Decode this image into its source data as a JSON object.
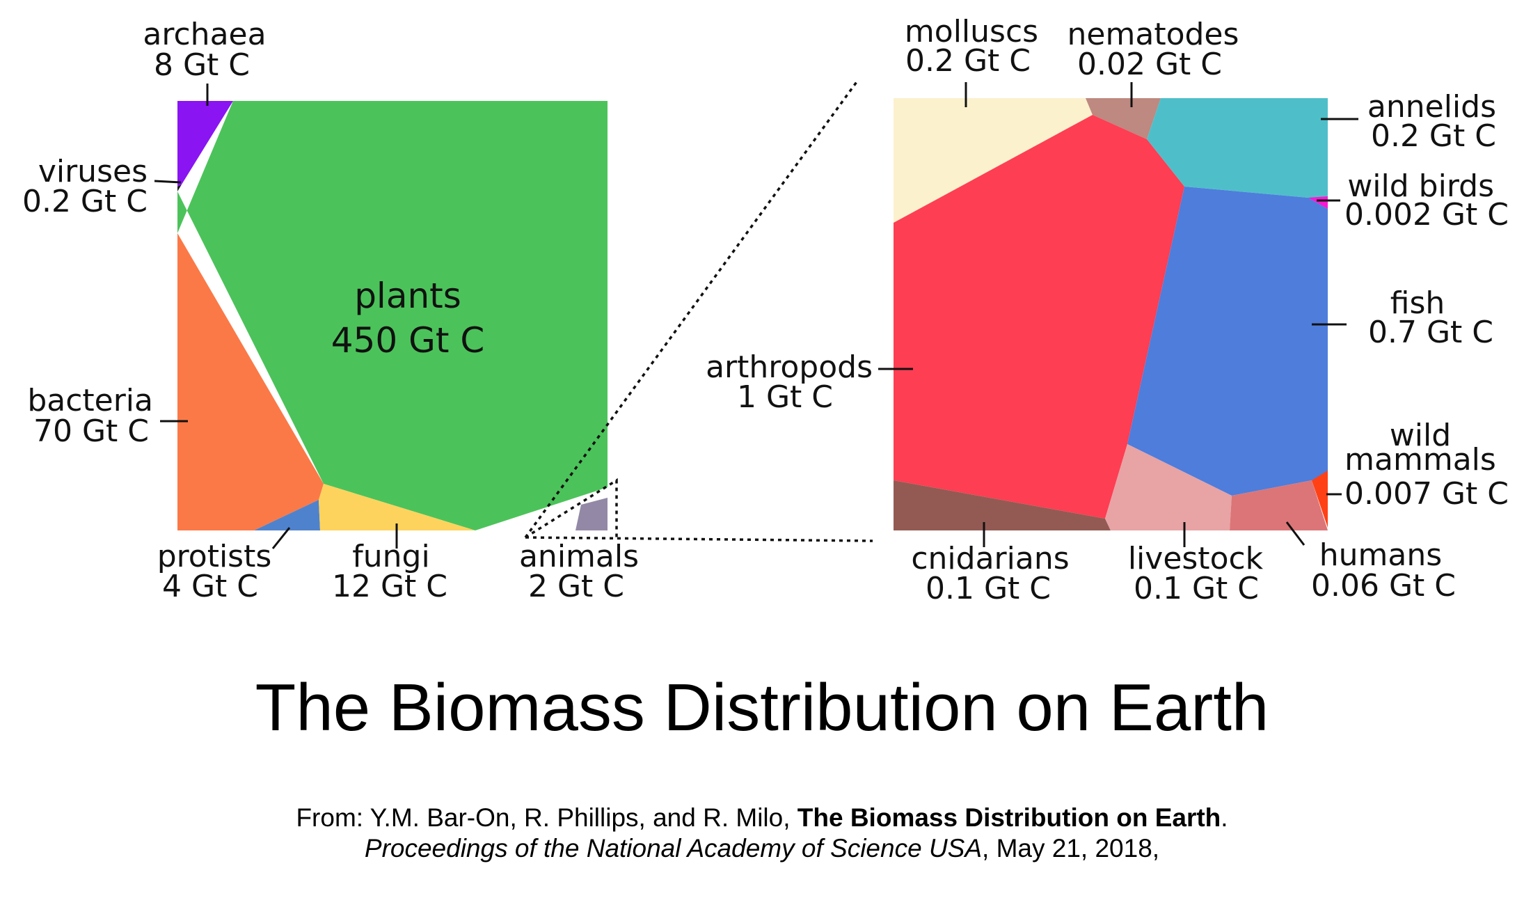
{
  "chart_data": [
    {
      "type": "voronoi-treemap",
      "unit": "Gt C",
      "cells": [
        {
          "name": "plants",
          "value_label": "450 Gt C",
          "value": 450,
          "color": "#4bc35a"
        },
        {
          "name": "bacteria",
          "value_label": "70 Gt C",
          "value": 70,
          "color": "#fb7947"
        },
        {
          "name": "fungi",
          "value_label": "12 Gt C",
          "value": 12,
          "color": "#fed35d"
        },
        {
          "name": "archaea",
          "value_label": "8 Gt C",
          "value": 8,
          "color": "#8a14f2"
        },
        {
          "name": "protists",
          "value_label": "4 Gt C",
          "value": 4,
          "color": "#4f82cc"
        },
        {
          "name": "animals",
          "value_label": "2 Gt C",
          "value": 2,
          "color": "#9389a6"
        },
        {
          "name": "viruses",
          "value_label": "0.2 Gt C",
          "value": 0.2,
          "color": "#1a1a1a"
        }
      ]
    },
    {
      "type": "voronoi-treemap",
      "unit": "Gt C",
      "cells": [
        {
          "name": "arthropods",
          "value_label": "1 Gt C",
          "value": 1,
          "color": "#fe3e53"
        },
        {
          "name": "fish",
          "value_label": "0.7 Gt C",
          "value": 0.7,
          "color": "#4e7ddc"
        },
        {
          "name": "molluscs",
          "value_label": "0.2 Gt C",
          "value": 0.2,
          "color": "#fcf1cd"
        },
        {
          "name": "annelids",
          "value_label": "0.2 Gt C",
          "value": 0.2,
          "color": "#4ebfc9"
        },
        {
          "name": "cnidarians",
          "value_label": "0.1 Gt C",
          "value": 0.1,
          "color": "#935a53"
        },
        {
          "name": "livestock",
          "value_label": "0.1 Gt C",
          "value": 0.1,
          "color": "#e8a3a5"
        },
        {
          "name": "humans",
          "value_label": "0.06 Gt C",
          "value": 0.06,
          "color": "#dc7577"
        },
        {
          "name": "nematodes",
          "value_label": "0.02 Gt C",
          "value": 0.02,
          "color": "#bd8980"
        },
        {
          "name": "wild mammals",
          "value_label": "0.007 Gt C",
          "value": 0.007,
          "color": "#ff4115"
        },
        {
          "name": "wild birds",
          "value_label": "0.002 Gt C",
          "value": 0.002,
          "color": "#fb18d4"
        }
      ]
    }
  ],
  "title": "The Biomass Distribution on Earth",
  "citation": {
    "from": "From: Y.M. Bar-On, R. Phillips, and R. Milo, ",
    "paper_title": "The Biomass Distribution on Earth",
    "period": ".",
    "journal": "Proceedings of the National Academy of Science USA",
    "date": ", May 21, 2018,"
  }
}
